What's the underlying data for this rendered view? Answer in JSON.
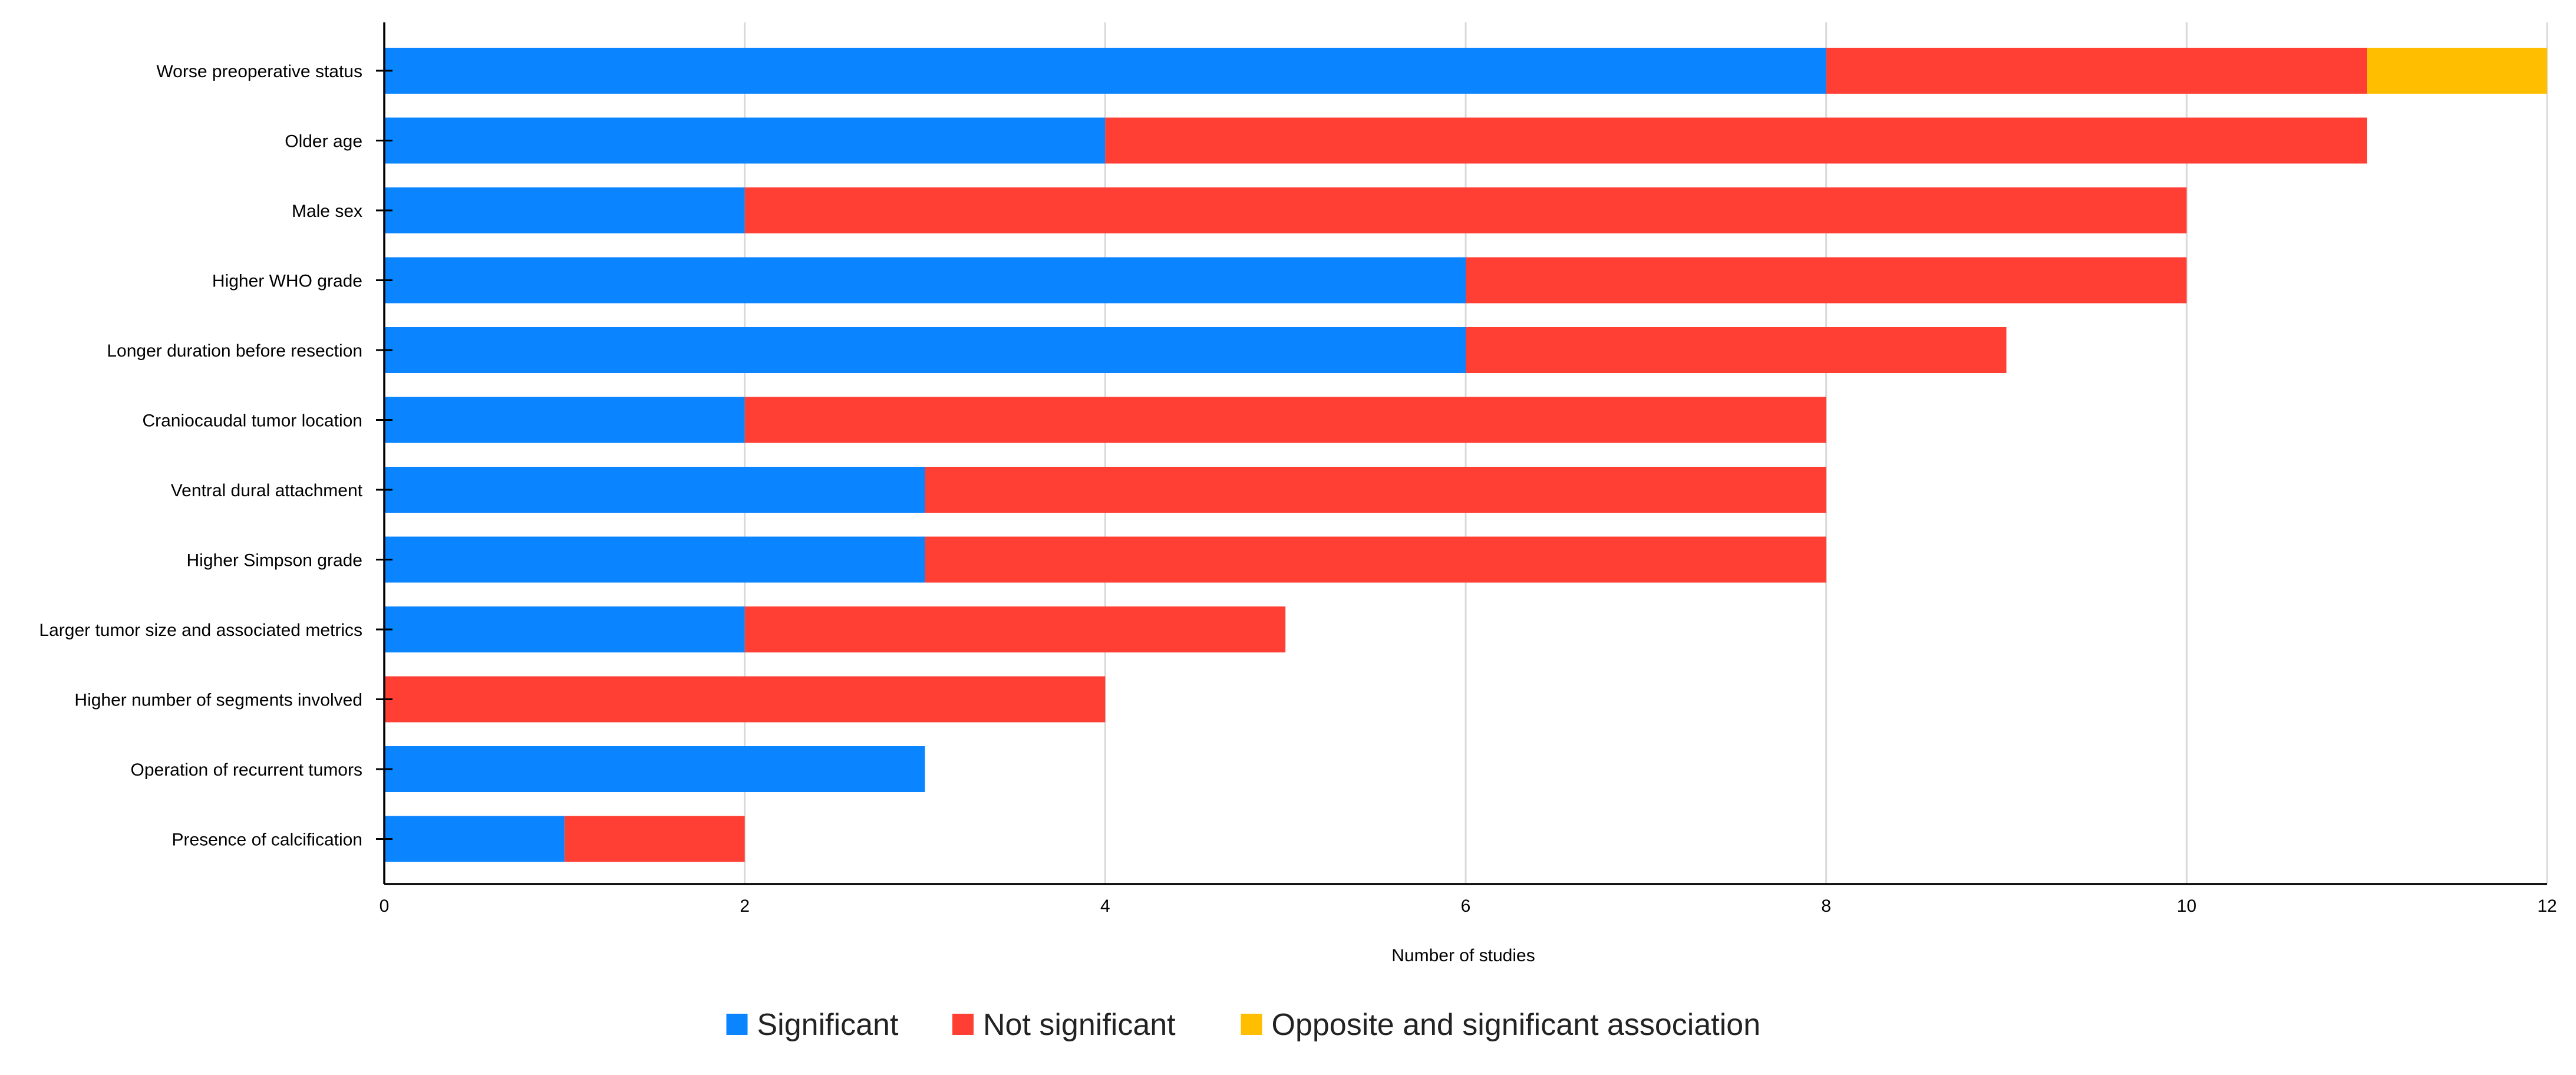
{
  "chart_data": {
    "type": "bar",
    "orientation": "horizontal",
    "stacked": true,
    "title": "",
    "xlabel": "Number of studies",
    "ylabel": "",
    "xlim": [
      0,
      12
    ],
    "xticks": [
      0,
      2,
      4,
      6,
      8,
      10,
      12
    ],
    "grid": true,
    "legend_position": "bottom-center",
    "categories": [
      "Worse preoperative status",
      "Older age",
      "Male sex",
      "Higher WHO grade",
      "Longer duration before resection",
      "Craniocaudal tumor location",
      "Ventral dural attachment",
      "Higher Simpson grade",
      "Larger tumor size and associated metrics",
      "Higher number of segments involved",
      "Operation of recurrent tumors",
      "Presence of calcification"
    ],
    "series": [
      {
        "name": "Significant",
        "color": "#0a84ff",
        "values": [
          8,
          4,
          2,
          6,
          6,
          2,
          3,
          3,
          2,
          0,
          3,
          1
        ]
      },
      {
        "name": "Not significant",
        "color": "#ff3f34",
        "values": [
          3,
          7,
          8,
          4,
          3,
          6,
          5,
          5,
          3,
          4,
          0,
          1
        ]
      },
      {
        "name": "Opposite and significant association",
        "color": "#ffbf00",
        "values": [
          1,
          0,
          0,
          0,
          0,
          0,
          0,
          0,
          0,
          0,
          0,
          0
        ]
      }
    ]
  }
}
